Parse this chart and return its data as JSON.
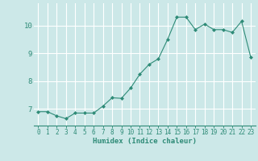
{
  "x": [
    0,
    1,
    2,
    3,
    4,
    5,
    6,
    7,
    8,
    9,
    10,
    11,
    12,
    13,
    14,
    15,
    16,
    17,
    18,
    19,
    20,
    21,
    22,
    23
  ],
  "y": [
    6.9,
    6.9,
    6.75,
    6.65,
    6.85,
    6.85,
    6.85,
    7.1,
    7.4,
    7.38,
    7.75,
    8.25,
    8.6,
    8.8,
    9.5,
    10.3,
    10.3,
    9.85,
    10.05,
    9.85,
    9.85,
    9.75,
    10.15,
    8.85
  ],
  "line_color": "#2e8b77",
  "marker_color": "#2e8b77",
  "bg_color": "#cce8e8",
  "grid_color": "#ffffff",
  "xlabel": "Humidex (Indice chaleur)",
  "ylim": [
    6.4,
    10.8
  ],
  "xlim": [
    -0.5,
    23.5
  ],
  "yticks": [
    7,
    8,
    9,
    10
  ],
  "xticks": [
    0,
    1,
    2,
    3,
    4,
    5,
    6,
    7,
    8,
    9,
    10,
    11,
    12,
    13,
    14,
    15,
    16,
    17,
    18,
    19,
    20,
    21,
    22,
    23
  ],
  "tick_color": "#2e8b77",
  "label_fontsize": 6.5,
  "tick_fontsize": 5.5,
  "ytick_fontsize": 6.5
}
